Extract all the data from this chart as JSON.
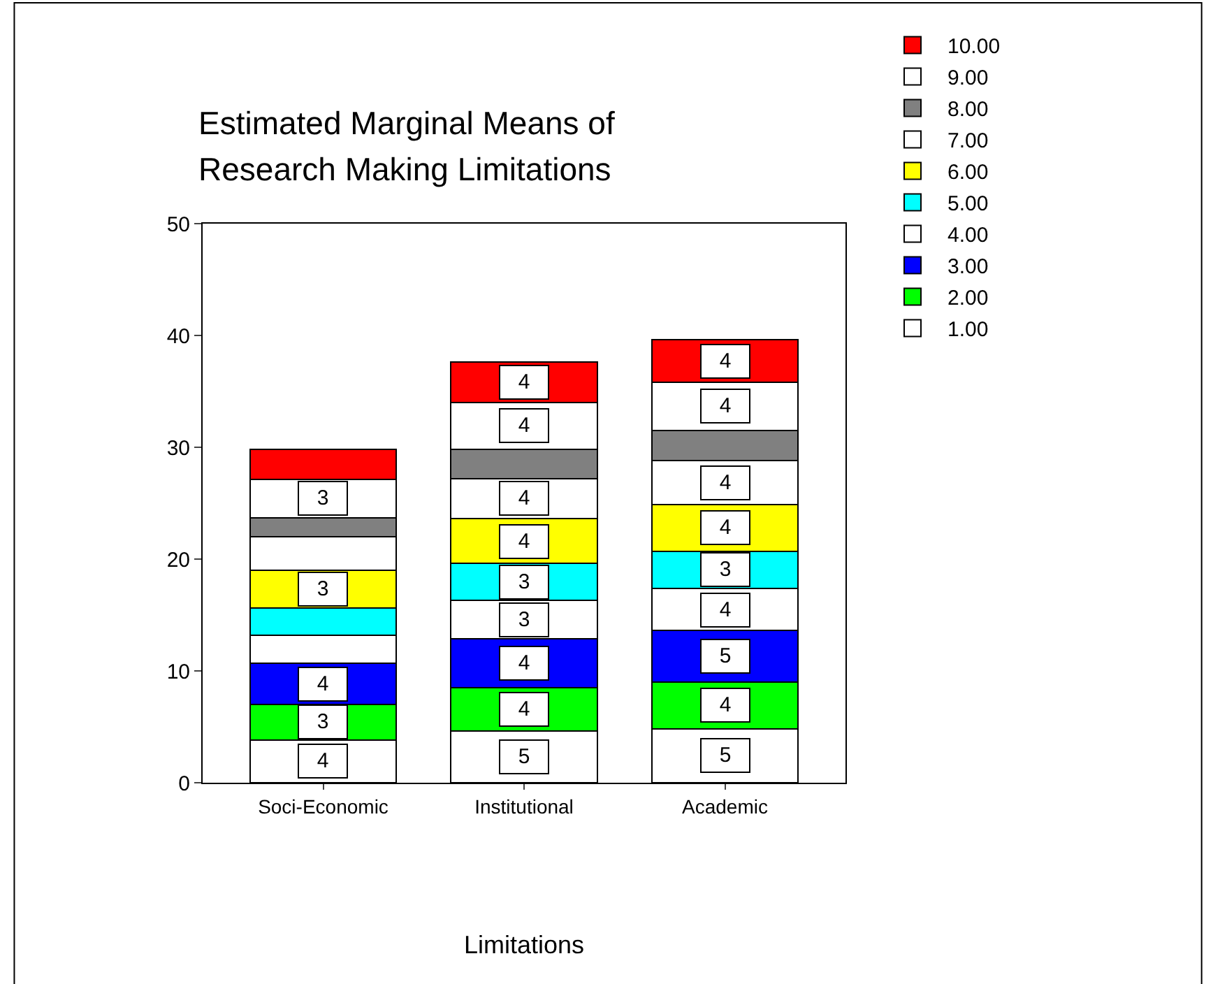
{
  "chart_data": {
    "type": "bar",
    "stacked": true,
    "title": "Estimated Marginal Means of\nResearch Making Limitations",
    "xlabel": "Limitations",
    "categories": [
      "Soci-Economic",
      "Institutional",
      "Academic"
    ],
    "ylim": [
      0,
      50
    ],
    "yticks": [
      0,
      10,
      20,
      30,
      40,
      50
    ],
    "legend": "top right",
    "series": [
      {
        "name": "1.00",
        "color": "#ffffff",
        "values": [
          3.8,
          4.6,
          4.8
        ],
        "value_labels": [
          "4",
          "5",
          "5"
        ]
      },
      {
        "name": "2.00",
        "color": "#00ff00",
        "values": [
          3.2,
          3.9,
          4.2
        ],
        "value_labels": [
          "3",
          "4",
          "4"
        ]
      },
      {
        "name": "3.00",
        "color": "#0000ff",
        "values": [
          3.7,
          4.4,
          4.6
        ],
        "value_labels": [
          "4",
          "4",
          "5"
        ]
      },
      {
        "name": "4.00",
        "color": "#ffffff",
        "values": [
          2.5,
          3.4,
          3.8
        ],
        "value_labels": [
          null,
          "3",
          "4"
        ]
      },
      {
        "name": "5.00",
        "color": "#00ffff",
        "values": [
          2.4,
          3.3,
          3.3
        ],
        "value_labels": [
          null,
          "3",
          "3"
        ]
      },
      {
        "name": "6.00",
        "color": "#ffff00",
        "values": [
          3.4,
          4.0,
          4.2
        ],
        "value_labels": [
          "3",
          "4",
          "4"
        ]
      },
      {
        "name": "7.00",
        "color": "#ffffff",
        "values": [
          3.0,
          3.6,
          3.9
        ],
        "value_labels": [
          null,
          "4",
          "4"
        ]
      },
      {
        "name": "8.00",
        "color": "#808080",
        "values": [
          1.7,
          2.6,
          2.7
        ],
        "value_labels": [
          null,
          null,
          null
        ]
      },
      {
        "name": "9.00",
        "color": "#ffffff",
        "values": [
          3.4,
          4.2,
          4.3
        ],
        "value_labels": [
          "3",
          "4",
          "4"
        ]
      },
      {
        "name": "10.00",
        "color": "#ff0000",
        "values": [
          2.7,
          3.6,
          3.8
        ],
        "value_labels": [
          null,
          "4",
          "4"
        ]
      }
    ]
  }
}
